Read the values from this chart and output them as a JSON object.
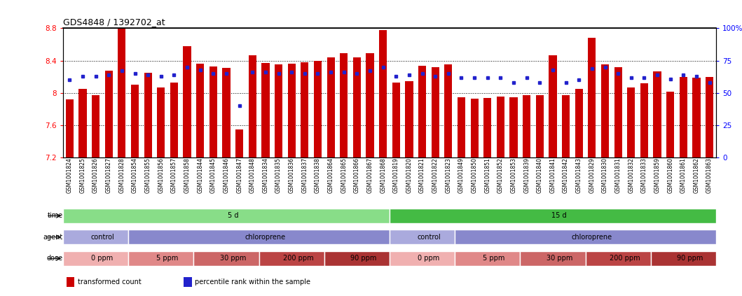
{
  "title": "GDS4848 / 1392702_at",
  "samples": [
    "GSM1001824",
    "GSM1001825",
    "GSM1001826",
    "GSM1001827",
    "GSM1001828",
    "GSM1001854",
    "GSM1001855",
    "GSM1001856",
    "GSM1001857",
    "GSM1001858",
    "GSM1001844",
    "GSM1001845",
    "GSM1001846",
    "GSM1001847",
    "GSM1001848",
    "GSM1001834",
    "GSM1001835",
    "GSM1001836",
    "GSM1001837",
    "GSM1001838",
    "GSM1001864",
    "GSM1001865",
    "GSM1001866",
    "GSM1001867",
    "GSM1001868",
    "GSM1001819",
    "GSM1001820",
    "GSM1001821",
    "GSM1001822",
    "GSM1001823",
    "GSM1001849",
    "GSM1001850",
    "GSM1001851",
    "GSM1001852",
    "GSM1001853",
    "GSM1001839",
    "GSM1001840",
    "GSM1001841",
    "GSM1001842",
    "GSM1001843",
    "GSM1001829",
    "GSM1001830",
    "GSM1001831",
    "GSM1001832",
    "GSM1001833",
    "GSM1001859",
    "GSM1001860",
    "GSM1001861",
    "GSM1001862",
    "GSM1001863"
  ],
  "bar_values": [
    7.92,
    8.05,
    7.97,
    8.28,
    8.8,
    8.1,
    8.25,
    8.07,
    8.13,
    8.58,
    8.36,
    8.33,
    8.31,
    7.55,
    8.47,
    8.37,
    8.35,
    8.36,
    8.38,
    8.4,
    8.44,
    8.49,
    8.44,
    8.49,
    8.78,
    8.13,
    8.15,
    8.34,
    8.32,
    8.35,
    7.95,
    7.93,
    7.94,
    7.96,
    7.95,
    7.97,
    7.97,
    8.47,
    7.97,
    8.05,
    8.68,
    8.35,
    8.32,
    8.07,
    8.12,
    8.27,
    8.02,
    8.2,
    8.19,
    8.2
  ],
  "percentile_values": [
    60,
    63,
    63,
    64,
    67,
    65,
    64,
    63,
    64,
    70,
    68,
    65,
    65,
    40,
    66,
    66,
    65,
    66,
    65,
    65,
    66,
    66,
    65,
    67,
    70,
    63,
    64,
    65,
    63,
    65,
    62,
    62,
    62,
    62,
    58,
    62,
    58,
    68,
    58,
    60,
    69,
    70,
    65,
    62,
    62,
    64,
    61,
    64,
    63,
    58
  ],
  "ymin": 7.2,
  "ymax": 8.8,
  "yticks": [
    7.2,
    7.6,
    8.0,
    8.4,
    8.8
  ],
  "right_yticks": [
    0,
    25,
    50,
    75,
    100
  ],
  "bar_color": "#cc0000",
  "dot_color": "#2222cc",
  "bg_color": "#ffffff",
  "time_groups": [
    {
      "label": "5 d",
      "start": 0,
      "end": 25,
      "color": "#88dd88"
    },
    {
      "label": "15 d",
      "start": 25,
      "end": 50,
      "color": "#44bb44"
    }
  ],
  "agent_groups": [
    {
      "label": "control",
      "start": 0,
      "end": 5,
      "color": "#aaaadd"
    },
    {
      "label": "chloroprene",
      "start": 5,
      "end": 25,
      "color": "#8888cc"
    },
    {
      "label": "control",
      "start": 25,
      "end": 30,
      "color": "#aaaadd"
    },
    {
      "label": "chloroprene",
      "start": 30,
      "end": 50,
      "color": "#8888cc"
    }
  ],
  "dose_groups": [
    {
      "label": "0 ppm",
      "start": 0,
      "end": 5,
      "color": "#f0b0b0"
    },
    {
      "label": "5 ppm",
      "start": 5,
      "end": 10,
      "color": "#e08888"
    },
    {
      "label": "30 ppm",
      "start": 10,
      "end": 15,
      "color": "#cc6666"
    },
    {
      "label": "200 ppm",
      "start": 15,
      "end": 20,
      "color": "#bb4444"
    },
    {
      "label": "90 ppm",
      "start": 20,
      "end": 25,
      "color": "#aa3333"
    },
    {
      "label": "0 ppm",
      "start": 25,
      "end": 30,
      "color": "#f0b0b0"
    },
    {
      "label": "5 ppm",
      "start": 30,
      "end": 35,
      "color": "#e08888"
    },
    {
      "label": "30 ppm",
      "start": 35,
      "end": 40,
      "color": "#cc6666"
    },
    {
      "label": "200 ppm",
      "start": 40,
      "end": 45,
      "color": "#bb4444"
    },
    {
      "label": "90 ppm",
      "start": 45,
      "end": 50,
      "color": "#aa3333"
    }
  ],
  "row_labels": [
    "time",
    "agent",
    "dose"
  ],
  "legend_items": [
    {
      "label": "transformed count",
      "color": "#cc0000"
    },
    {
      "label": "percentile rank within the sample",
      "color": "#2222cc"
    }
  ]
}
